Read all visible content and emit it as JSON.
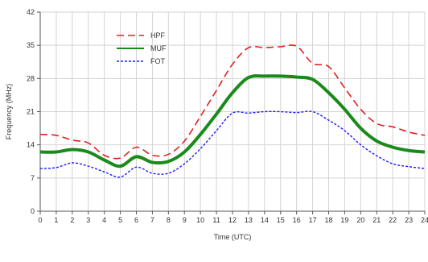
{
  "chart_data": {
    "type": "line",
    "title": "",
    "xlabel": "Time (UTC)",
    "ylabel": "Frequency (MHz)",
    "xlim": [
      0,
      24
    ],
    "ylim": [
      0,
      42
    ],
    "xticks": [
      "0",
      "1",
      "2",
      "3",
      "4",
      "5",
      "6",
      "7",
      "8",
      "9",
      "10",
      "11",
      "12",
      "13",
      "14",
      "15",
      "16",
      "17",
      "18",
      "19",
      "20",
      "21",
      "22",
      "23",
      "24"
    ],
    "yticks": [
      "0",
      "7",
      "14",
      "21",
      "28",
      "35",
      "42"
    ],
    "grid": true,
    "legend_position": "top-left",
    "x": [
      0,
      1,
      2,
      3,
      4,
      5,
      6,
      7,
      8,
      9,
      10,
      11,
      12,
      13,
      14,
      15,
      16,
      17,
      18,
      19,
      20,
      21,
      22,
      23,
      24
    ],
    "series": [
      {
        "name": "HPF",
        "color": "#e02020",
        "dash": "dashed",
        "values": [
          16.2,
          16.0,
          15.0,
          14.4,
          11.8,
          11.2,
          13.5,
          11.8,
          12.0,
          14.8,
          20.0,
          25.5,
          31.0,
          34.5,
          34.5,
          34.7,
          34.8,
          31.2,
          30.5,
          26.0,
          21.5,
          18.5,
          17.8,
          16.7,
          16.0
        ]
      },
      {
        "name": "MUF",
        "color": "#1a8a1a",
        "dash": "solid",
        "values": [
          12.5,
          12.5,
          13.0,
          12.5,
          10.8,
          9.5,
          11.5,
          10.3,
          10.5,
          12.5,
          16.2,
          20.5,
          25.0,
          28.2,
          28.5,
          28.5,
          28.3,
          27.8,
          25.0,
          21.5,
          17.5,
          14.8,
          13.5,
          12.8,
          12.5
        ]
      },
      {
        "name": "FOT",
        "color": "#1a1aff",
        "dash": "dotted",
        "values": [
          9.0,
          9.2,
          10.2,
          9.5,
          8.3,
          7.2,
          9.3,
          8.0,
          8.0,
          10.0,
          13.2,
          17.0,
          20.7,
          20.7,
          21.0,
          21.0,
          20.8,
          21.0,
          19.2,
          17.0,
          14.0,
          11.7,
          10.0,
          9.4,
          9.0
        ]
      }
    ]
  }
}
